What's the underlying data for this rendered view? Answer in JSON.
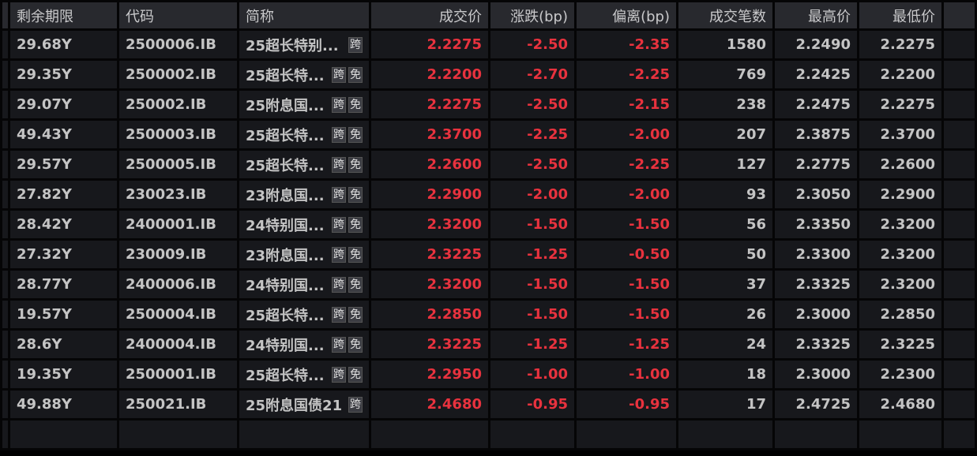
{
  "columns": [
    "剩余期限",
    "代码",
    "简称",
    "成交价",
    "涨跌(bp)",
    "偏离(bp)",
    "成交笔数",
    "最高价",
    "最低价"
  ],
  "colors": {
    "negative": "#e8323e",
    "text": "#c4c4c4",
    "header_bg": "#28292e",
    "row_bg": "#17181c"
  },
  "rows": [
    {
      "term": "29.68Y",
      "code": "2500006.IB",
      "name": "25超长特别...",
      "tags": [
        "跨"
      ],
      "price": "2.2275",
      "chg": "-2.50",
      "dev": "-2.35",
      "count": "1580",
      "high": "2.2490",
      "low": "2.2275"
    },
    {
      "term": "29.35Y",
      "code": "2500002.IB",
      "name": "25超长特...",
      "tags": [
        "跨",
        "免"
      ],
      "price": "2.2200",
      "chg": "-2.70",
      "dev": "-2.25",
      "count": "769",
      "high": "2.2425",
      "low": "2.2200"
    },
    {
      "term": "29.07Y",
      "code": "250002.IB",
      "name": "25附息国...",
      "tags": [
        "跨",
        "免"
      ],
      "price": "2.2275",
      "chg": "-2.50",
      "dev": "-2.15",
      "count": "238",
      "high": "2.2475",
      "low": "2.2275"
    },
    {
      "term": "49.43Y",
      "code": "2500003.IB",
      "name": "25超长特...",
      "tags": [
        "跨",
        "免"
      ],
      "price": "2.3700",
      "chg": "-2.25",
      "dev": "-2.00",
      "count": "207",
      "high": "2.3875",
      "low": "2.3700"
    },
    {
      "term": "29.57Y",
      "code": "2500005.IB",
      "name": "25超长特...",
      "tags": [
        "跨",
        "免"
      ],
      "price": "2.2600",
      "chg": "-2.50",
      "dev": "-2.25",
      "count": "127",
      "high": "2.2775",
      "low": "2.2600"
    },
    {
      "term": "27.82Y",
      "code": "230023.IB",
      "name": "23附息国...",
      "tags": [
        "跨",
        "免"
      ],
      "price": "2.2900",
      "chg": "-2.00",
      "dev": "-2.00",
      "count": "93",
      "high": "2.3050",
      "low": "2.2900"
    },
    {
      "term": "28.42Y",
      "code": "2400001.IB",
      "name": "24特别国...",
      "tags": [
        "跨",
        "免"
      ],
      "price": "2.3200",
      "chg": "-1.50",
      "dev": "-1.50",
      "count": "56",
      "high": "2.3350",
      "low": "2.3200"
    },
    {
      "term": "27.32Y",
      "code": "230009.IB",
      "name": "23附息国...",
      "tags": [
        "跨",
        "免"
      ],
      "price": "2.3225",
      "chg": "-1.25",
      "dev": "-0.50",
      "count": "50",
      "high": "2.3300",
      "low": "2.3200"
    },
    {
      "term": "28.77Y",
      "code": "2400006.IB",
      "name": "24特别国...",
      "tags": [
        "跨",
        "免"
      ],
      "price": "2.3200",
      "chg": "-1.50",
      "dev": "-1.50",
      "count": "37",
      "high": "2.3325",
      "low": "2.3200"
    },
    {
      "term": "19.57Y",
      "code": "2500004.IB",
      "name": "25超长特...",
      "tags": [
        "跨",
        "免"
      ],
      "price": "2.2850",
      "chg": "-1.50",
      "dev": "-1.50",
      "count": "26",
      "high": "2.3000",
      "low": "2.2850"
    },
    {
      "term": "28.6Y",
      "code": "2400004.IB",
      "name": "24特别国...",
      "tags": [
        "跨",
        "免"
      ],
      "price": "2.3225",
      "chg": "-1.25",
      "dev": "-1.25",
      "count": "24",
      "high": "2.3325",
      "low": "2.3225"
    },
    {
      "term": "19.35Y",
      "code": "2500001.IB",
      "name": "25超长特...",
      "tags": [
        "跨",
        "免"
      ],
      "price": "2.2950",
      "chg": "-1.00",
      "dev": "-1.00",
      "count": "18",
      "high": "2.3000",
      "low": "2.2300"
    },
    {
      "term": "49.88Y",
      "code": "250021.IB",
      "name": "25附息国债21",
      "tags": [
        "跨"
      ],
      "price": "2.4680",
      "chg": "-0.95",
      "dev": "-0.95",
      "count": "17",
      "high": "2.4725",
      "low": "2.4680"
    }
  ]
}
